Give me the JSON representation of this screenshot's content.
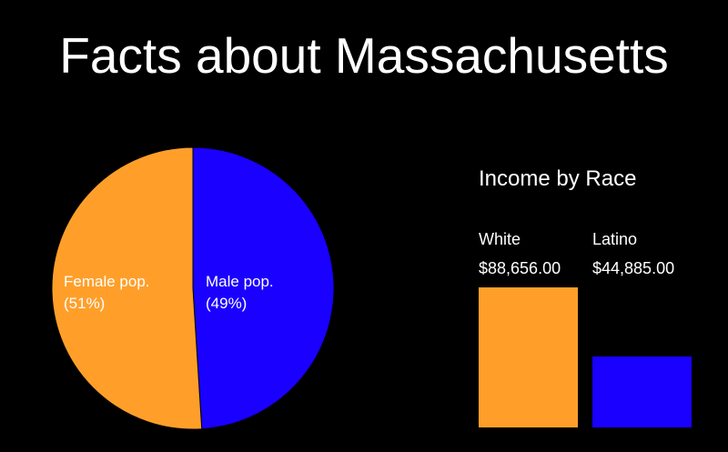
{
  "title": "Facts about Massachusetts",
  "chart_data": [
    {
      "type": "pie",
      "slices": [
        {
          "label": "Male pop.",
          "pct_label": "(49%)",
          "value": 49,
          "color": "#1a00ff"
        },
        {
          "label": "Female pop.",
          "pct_label": "(51%)",
          "value": 51,
          "color": "#ff9f2a"
        }
      ]
    },
    {
      "type": "bar",
      "title": "Income by Race",
      "categories": [
        "White",
        "Latino"
      ],
      "values": [
        88656.0,
        44885.0
      ],
      "value_labels": [
        "$88,656.00",
        "$44,885.00"
      ],
      "colors": [
        "#ff9f2a",
        "#1a00ff"
      ],
      "grid": false
    }
  ]
}
